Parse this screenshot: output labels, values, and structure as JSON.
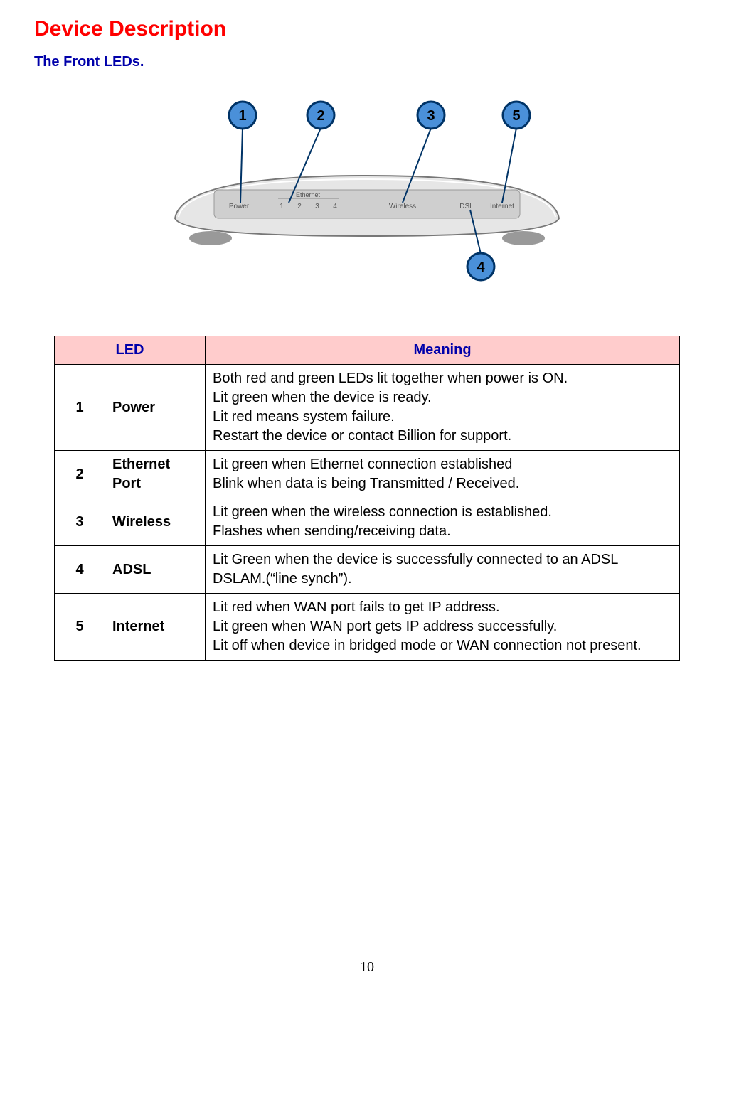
{
  "title": "Device Description",
  "subtitle": "The Front LEDs.",
  "diagram": {
    "callouts": [
      "1",
      "2",
      "3",
      "4",
      "5"
    ],
    "labels": [
      "Power",
      "1",
      "2",
      "3",
      "4",
      "Wireless",
      "DSL",
      "Internet"
    ],
    "ethernet_label": "Ethernet",
    "callout_bg": "#4a90d9",
    "callout_border": "#003366",
    "body_fill": "#e6e6e6",
    "body_edge": "#b5b5b5",
    "panel_fill": "#cfcfcf"
  },
  "table": {
    "header_bg": "#ffcccc",
    "header_color": "#0000aa",
    "headers": {
      "led": "LED",
      "meaning": "Meaning"
    },
    "rows": [
      {
        "num": "1",
        "name": "Power",
        "lines": [
          "Both red and green LEDs lit together when power is ON.",
          "Lit green when the device is ready.",
          "Lit red means system failure.",
          "Restart the device or contact Billion for support."
        ]
      },
      {
        "num": "2",
        "name": "Ethernet Port",
        "lines": [
          "Lit green when Ethernet connection established",
          "Blink when data is being Transmitted / Received."
        ]
      },
      {
        "num": "3",
        "name": "Wireless",
        "lines": [
          "Lit green when the wireless connection is established.",
          "Flashes when sending/receiving data."
        ]
      },
      {
        "num": "4",
        "name": "ADSL",
        "lines": [
          "Lit Green when the device is successfully connected to an ADSL DSLAM.(“line synch”)."
        ]
      },
      {
        "num": "5",
        "name": "Internet",
        "lines": [
          "Lit red when WAN port fails to get IP address.",
          "Lit green when WAN port gets IP address successfully.",
          "Lit off when device in bridged mode or WAN connection not present."
        ],
        "justify_last": true
      }
    ]
  },
  "page_number": "10"
}
